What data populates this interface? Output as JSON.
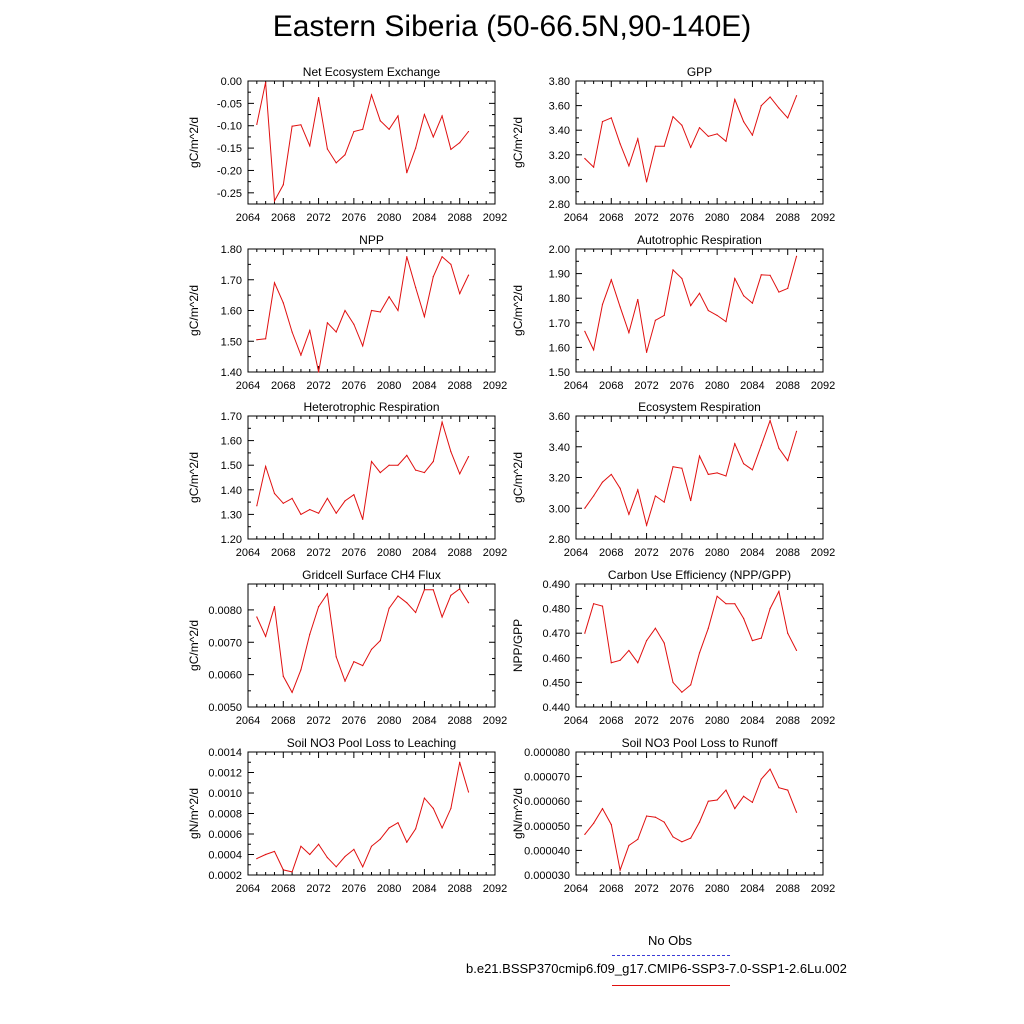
{
  "title": "Eastern Siberia (50-66.5N,90-140E)",
  "legend": {
    "obs_label": "No Obs",
    "case_label": "b.e21.BSSP370cmip6.f09_g17.CMIP6-SSP3-7.0-SSP1-2.6Lu.002",
    "obs_color": "#3b3bd6",
    "case_color": "#e01010"
  },
  "chart_data": [
    {
      "type": "line",
      "title": "Net Ecosystem Exchange",
      "ylabel": "gC/m^2/d",
      "xlim": [
        2064,
        2092
      ],
      "ylim": [
        -0.275,
        0.0
      ],
      "xticks": [
        "2064",
        "2068",
        "2072",
        "2076",
        "2080",
        "2084",
        "2088",
        "2092"
      ],
      "yticks": [
        "0.00",
        "-0.05",
        "-0.10",
        "-0.15",
        "-0.20",
        "-0.25"
      ],
      "ytick_values": [
        0.0,
        -0.05,
        -0.1,
        -0.15,
        -0.2,
        -0.25
      ],
      "x": [
        2065,
        2066,
        2067,
        2068,
        2069,
        2070,
        2071,
        2072,
        2073,
        2074,
        2075,
        2076,
        2077,
        2078,
        2079,
        2080,
        2081,
        2082,
        2083,
        2084,
        2085,
        2086,
        2087,
        2088,
        2089
      ],
      "values": [
        -0.097,
        -0.003,
        -0.268,
        -0.232,
        -0.101,
        -0.098,
        -0.145,
        -0.037,
        -0.152,
        -0.183,
        -0.165,
        -0.113,
        -0.108,
        -0.031,
        -0.089,
        -0.108,
        -0.078,
        -0.205,
        -0.15,
        -0.075,
        -0.125,
        -0.078,
        -0.153,
        -0.138,
        -0.113
      ],
      "color": "#e01010"
    },
    {
      "type": "line",
      "title": "GPP",
      "ylabel": "gC/m^2/d",
      "xlim": [
        2064,
        2092
      ],
      "ylim": [
        2.8,
        3.8
      ],
      "xticks": [
        "2064",
        "2068",
        "2072",
        "2076",
        "2080",
        "2084",
        "2088",
        "2092"
      ],
      "yticks": [
        "3.80",
        "3.60",
        "3.40",
        "3.20",
        "3.00",
        "2.80"
      ],
      "ytick_values": [
        3.8,
        3.6,
        3.4,
        3.2,
        3.0,
        2.8
      ],
      "x": [
        2065,
        2066,
        2067,
        2068,
        2069,
        2070,
        2071,
        2072,
        2073,
        2074,
        2075,
        2076,
        2077,
        2078,
        2079,
        2080,
        2081,
        2082,
        2083,
        2084,
        2085,
        2086,
        2087,
        2088,
        2089
      ],
      "values": [
        3.17,
        3.1,
        3.47,
        3.5,
        3.29,
        3.11,
        3.33,
        2.98,
        3.27,
        3.27,
        3.51,
        3.44,
        3.26,
        3.42,
        3.35,
        3.37,
        3.31,
        3.65,
        3.47,
        3.36,
        3.6,
        3.67,
        3.58,
        3.5,
        3.68
      ],
      "color": "#e01010"
    },
    {
      "type": "line",
      "title": "NPP",
      "ylabel": "gC/m^2/d",
      "xlim": [
        2064,
        2092
      ],
      "ylim": [
        1.4,
        1.8
      ],
      "xticks": [
        "2064",
        "2068",
        "2072",
        "2076",
        "2080",
        "2084",
        "2088",
        "2092"
      ],
      "yticks": [
        "1.80",
        "1.70",
        "1.60",
        "1.50",
        "1.40"
      ],
      "ytick_values": [
        1.8,
        1.7,
        1.6,
        1.5,
        1.4
      ],
      "x": [
        2065,
        2066,
        2067,
        2068,
        2069,
        2070,
        2071,
        2072,
        2073,
        2074,
        2075,
        2076,
        2077,
        2078,
        2079,
        2080,
        2081,
        2082,
        2083,
        2084,
        2085,
        2086,
        2087,
        2088,
        2089
      ],
      "values": [
        1.505,
        1.508,
        1.69,
        1.625,
        1.53,
        1.455,
        1.535,
        1.4,
        1.56,
        1.53,
        1.6,
        1.555,
        1.485,
        1.6,
        1.595,
        1.645,
        1.6,
        1.775,
        1.675,
        1.58,
        1.71,
        1.775,
        1.75,
        1.655,
        1.715
      ],
      "color": "#e01010"
    },
    {
      "type": "line",
      "title": "Autotrophic Respiration",
      "ylabel": "gC/m^2/d",
      "xlim": [
        2064,
        2092
      ],
      "ylim": [
        1.5,
        2.0
      ],
      "xticks": [
        "2064",
        "2068",
        "2072",
        "2076",
        "2080",
        "2084",
        "2088",
        "2092"
      ],
      "yticks": [
        "2.00",
        "1.90",
        "1.80",
        "1.70",
        "1.60",
        "1.50"
      ],
      "ytick_values": [
        2.0,
        1.9,
        1.8,
        1.7,
        1.6,
        1.5
      ],
      "x": [
        2065,
        2066,
        2067,
        2068,
        2069,
        2070,
        2071,
        2072,
        2073,
        2074,
        2075,
        2076,
        2077,
        2078,
        2079,
        2080,
        2081,
        2082,
        2083,
        2084,
        2085,
        2086,
        2087,
        2088,
        2089
      ],
      "values": [
        1.665,
        1.59,
        1.775,
        1.875,
        1.765,
        1.66,
        1.795,
        1.58,
        1.71,
        1.73,
        1.915,
        1.88,
        1.77,
        1.82,
        1.75,
        1.73,
        1.705,
        1.88,
        1.81,
        1.78,
        1.895,
        1.893,
        1.825,
        1.84,
        1.97
      ],
      "color": "#e01010"
    },
    {
      "type": "line",
      "title": "Heterotrophic Respiration",
      "ylabel": "gC/m^2/d",
      "xlim": [
        2064,
        2092
      ],
      "ylim": [
        1.2,
        1.7
      ],
      "xticks": [
        "2064",
        "2068",
        "2072",
        "2076",
        "2080",
        "2084",
        "2088",
        "2092"
      ],
      "yticks": [
        "1.70",
        "1.60",
        "1.50",
        "1.40",
        "1.30",
        "1.20"
      ],
      "ytick_values": [
        1.7,
        1.6,
        1.5,
        1.4,
        1.3,
        1.2
      ],
      "x": [
        2065,
        2066,
        2067,
        2068,
        2069,
        2070,
        2071,
        2072,
        2073,
        2074,
        2075,
        2076,
        2077,
        2078,
        2079,
        2080,
        2081,
        2082,
        2083,
        2084,
        2085,
        2086,
        2087,
        2088,
        2089
      ],
      "values": [
        1.335,
        1.495,
        1.385,
        1.345,
        1.365,
        1.3,
        1.32,
        1.305,
        1.365,
        1.305,
        1.355,
        1.38,
        1.28,
        1.515,
        1.47,
        1.5,
        1.5,
        1.54,
        1.48,
        1.47,
        1.515,
        1.675,
        1.555,
        1.465,
        1.535
      ],
      "color": "#e01010"
    },
    {
      "type": "line",
      "title": "Ecosystem Respiration",
      "ylabel": "gC/m^2/d",
      "xlim": [
        2064,
        2092
      ],
      "ylim": [
        2.8,
        3.6
      ],
      "xticks": [
        "2064",
        "2068",
        "2072",
        "2076",
        "2080",
        "2084",
        "2088",
        "2092"
      ],
      "yticks": [
        "3.60",
        "3.40",
        "3.20",
        "3.00",
        "2.80"
      ],
      "ytick_values": [
        3.6,
        3.4,
        3.2,
        3.0,
        2.8
      ],
      "x": [
        2065,
        2066,
        2067,
        2068,
        2069,
        2070,
        2071,
        2072,
        2073,
        2074,
        2075,
        2076,
        2077,
        2078,
        2079,
        2080,
        2081,
        2082,
        2083,
        2084,
        2085,
        2086,
        2087,
        2088,
        2089
      ],
      "values": [
        3.0,
        3.08,
        3.17,
        3.22,
        3.13,
        2.96,
        3.12,
        2.89,
        3.08,
        3.04,
        3.27,
        3.26,
        3.05,
        3.34,
        3.22,
        3.23,
        3.21,
        3.42,
        3.29,
        3.25,
        3.41,
        3.57,
        3.39,
        3.31,
        3.5
      ],
      "color": "#e01010"
    },
    {
      "type": "line",
      "title": "Gridcell Surface CH4 Flux",
      "ylabel": "gC/m^2/d",
      "xlim": [
        2064,
        2092
      ],
      "ylim": [
        0.005,
        0.0088
      ],
      "xticks": [
        "2064",
        "2068",
        "2072",
        "2076",
        "2080",
        "2084",
        "2088",
        "2092"
      ],
      "yticks": [
        "0.0080",
        "0.0070",
        "0.0060",
        "0.0050"
      ],
      "ytick_values": [
        0.008,
        0.007,
        0.006,
        0.005
      ],
      "x": [
        2065,
        2066,
        2067,
        2068,
        2069,
        2070,
        2071,
        2072,
        2073,
        2074,
        2075,
        2076,
        2077,
        2078,
        2079,
        2080,
        2081,
        2082,
        2083,
        2084,
        2085,
        2086,
        2087,
        2088,
        2089
      ],
      "values": [
        0.00778,
        0.00718,
        0.0081,
        0.00595,
        0.00545,
        0.00615,
        0.00725,
        0.0081,
        0.0085,
        0.00655,
        0.0058,
        0.0064,
        0.00628,
        0.00678,
        0.00705,
        0.00805,
        0.00843,
        0.00822,
        0.00792,
        0.00862,
        0.00862,
        0.00778,
        0.00845,
        0.00865,
        0.00822
      ],
      "color": "#e01010"
    },
    {
      "type": "line",
      "title": "Carbon Use Efficiency (NPP/GPP)",
      "ylabel": "NPP/GPP",
      "xlim": [
        2064,
        2092
      ],
      "ylim": [
        0.44,
        0.49
      ],
      "xticks": [
        "2064",
        "2068",
        "2072",
        "2076",
        "2080",
        "2084",
        "2088",
        "2092"
      ],
      "yticks": [
        "0.490",
        "0.480",
        "0.470",
        "0.460",
        "0.450",
        "0.440"
      ],
      "ytick_values": [
        0.49,
        0.48,
        0.47,
        0.46,
        0.45,
        0.44
      ],
      "x": [
        2065,
        2066,
        2067,
        2068,
        2069,
        2070,
        2071,
        2072,
        2073,
        2074,
        2075,
        2076,
        2077,
        2078,
        2079,
        2080,
        2081,
        2082,
        2083,
        2084,
        2085,
        2086,
        2087,
        2088,
        2089
      ],
      "values": [
        0.47,
        0.482,
        0.481,
        0.458,
        0.459,
        0.463,
        0.458,
        0.467,
        0.472,
        0.466,
        0.45,
        0.446,
        0.449,
        0.462,
        0.472,
        0.485,
        0.482,
        0.482,
        0.476,
        0.467,
        0.468,
        0.48,
        0.487,
        0.47,
        0.463
      ],
      "color": "#e01010"
    },
    {
      "type": "line",
      "title": "Soil NO3 Pool Loss to Leaching",
      "ylabel": "gN/m^2/d",
      "xlim": [
        2064,
        2092
      ],
      "ylim": [
        0.0002,
        0.0014
      ],
      "xticks": [
        "2064",
        "2068",
        "2072",
        "2076",
        "2080",
        "2084",
        "2088",
        "2092"
      ],
      "yticks": [
        "0.0014",
        "0.0012",
        "0.0010",
        "0.0008",
        "0.0006",
        "0.0004",
        "0.0002"
      ],
      "ytick_values": [
        0.0014,
        0.0012,
        0.001,
        0.0008,
        0.0006,
        0.0004,
        0.0002
      ],
      "x": [
        2065,
        2066,
        2067,
        2068,
        2069,
        2070,
        2071,
        2072,
        2073,
        2074,
        2075,
        2076,
        2077,
        2078,
        2079,
        2080,
        2081,
        2082,
        2083,
        2084,
        2085,
        2086,
        2087,
        2088,
        2089
      ],
      "values": [
        0.00036,
        0.0004,
        0.00043,
        0.00025,
        0.00023,
        0.00048,
        0.0004,
        0.0005,
        0.00037,
        0.00028,
        0.00038,
        0.00045,
        0.00028,
        0.00048,
        0.00055,
        0.00066,
        0.00071,
        0.00052,
        0.00065,
        0.00095,
        0.00085,
        0.00066,
        0.00085,
        0.0013,
        0.00101
      ],
      "color": "#e01010"
    },
    {
      "type": "line",
      "title": "Soil NO3 Pool Loss to Runoff",
      "ylabel": "gN/m^2/d",
      "xlim": [
        2064,
        2092
      ],
      "ylim": [
        3e-05,
        8e-05
      ],
      "xticks": [
        "2064",
        "2068",
        "2072",
        "2076",
        "2080",
        "2084",
        "2088",
        "2092"
      ],
      "yticks": [
        "0.000080",
        "0.000070",
        "0.000060",
        "0.000050",
        "0.000040",
        "0.000030"
      ],
      "ytick_values": [
        8e-05,
        7e-05,
        6e-05,
        5e-05,
        4e-05,
        3e-05
      ],
      "x": [
        2065,
        2066,
        2067,
        2068,
        2069,
        2070,
        2071,
        2072,
        2073,
        2074,
        2075,
        2076,
        2077,
        2078,
        2079,
        2080,
        2081,
        2082,
        2083,
        2084,
        2085,
        2086,
        2087,
        2088,
        2089
      ],
      "values": [
        4.65e-05,
        5.1e-05,
        5.7e-05,
        5.05e-05,
        3.2e-05,
        4.2e-05,
        4.45e-05,
        5.4e-05,
        5.35e-05,
        5.15e-05,
        4.55e-05,
        4.35e-05,
        4.5e-05,
        5.15e-05,
        6e-05,
        6.05e-05,
        6.45e-05,
        5.7e-05,
        6.2e-05,
        5.95e-05,
        6.9e-05,
        7.3e-05,
        6.55e-05,
        6.45e-05,
        5.55e-05
      ],
      "color": "#e01010"
    }
  ]
}
